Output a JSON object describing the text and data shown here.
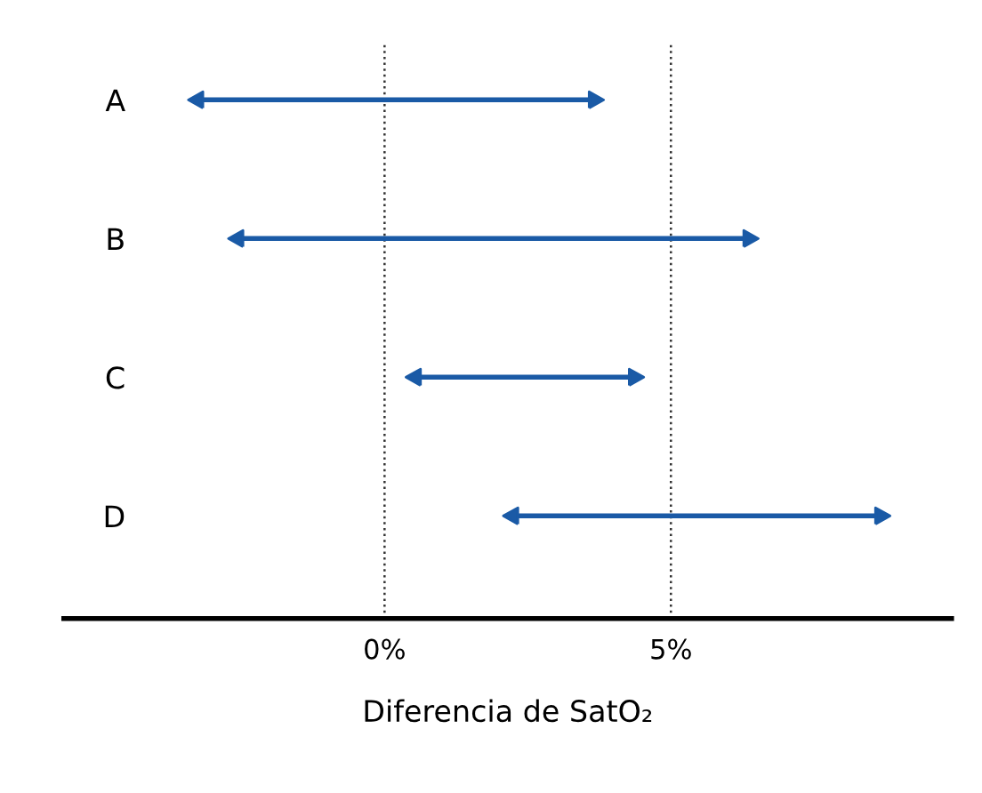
{
  "chart_data": {
    "type": "bar",
    "orientation": "horizontal",
    "xlabel": "Diferencia de SatO₂",
    "categories": [
      "A",
      "B",
      "C",
      "D"
    ],
    "base": [
      -3.2,
      -2.5,
      0.6,
      2.3
    ],
    "values": [
      6.8,
      8.8,
      3.7,
      6.3
    ],
    "color": "#1a5aa6",
    "xlim": [
      -5.6,
      9.9
    ],
    "xticks": [
      {
        "value": 0,
        "label": "0%"
      },
      {
        "value": 5,
        "label": "5%"
      }
    ],
    "ref_lines": [
      {
        "axis": "x",
        "value": 0,
        "line_style": "dotted",
        "color": "#333333"
      },
      {
        "axis": "x",
        "value": 5,
        "line_style": "dotted",
        "color": "#333333"
      }
    ],
    "grid": false
  }
}
